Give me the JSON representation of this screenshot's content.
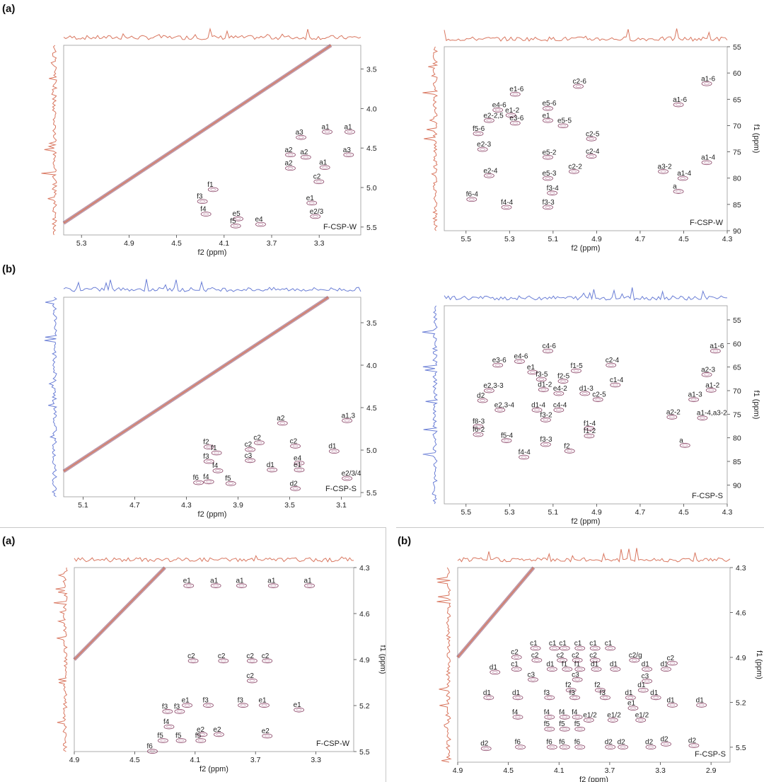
{
  "colors": {
    "contour": "#8a4466",
    "contour_light": "#c79ab2",
    "diag": "#e07a52",
    "proj_red": "#d97760",
    "proj_blue": "#6b7fd6",
    "axis": "#444444",
    "box": "#777777"
  },
  "figure": {
    "labels": {
      "a1": "(a)",
      "b1": "(b)",
      "a2": "(a)",
      "b2": "(b)"
    }
  },
  "chart_data": [
    {
      "id": "p1",
      "type": "contour",
      "sample": "F-CSP-W",
      "proj": "red",
      "xlabel": "f2 (ppm)",
      "ylabel": "",
      "xlim": [
        5.45,
        2.95
      ],
      "ylim": [
        3.2,
        5.6
      ],
      "xticks": [
        5.3,
        4.9,
        4.5,
        4.1,
        3.7,
        3.3
      ],
      "yticks": [
        3.5,
        4.0,
        4.5,
        5.0,
        5.5
      ],
      "labels": [
        {
          "t": "a1",
          "x": 3.28,
          "y": 4.26
        },
        {
          "t": "a3",
          "x": 3.5,
          "y": 4.33
        },
        {
          "t": "a1",
          "x": 3.09,
          "y": 4.26
        },
        {
          "t": "a2",
          "x": 3.59,
          "y": 4.55
        },
        {
          "t": "a2",
          "x": 3.46,
          "y": 4.58
        },
        {
          "t": "a3",
          "x": 3.1,
          "y": 4.55
        },
        {
          "t": "a2",
          "x": 3.59,
          "y": 4.72
        },
        {
          "t": "a1",
          "x": 3.3,
          "y": 4.71
        },
        {
          "t": "c2",
          "x": 3.35,
          "y": 4.89
        },
        {
          "t": "f1",
          "x": 4.24,
          "y": 4.99
        },
        {
          "t": "f3",
          "x": 4.33,
          "y": 5.14
        },
        {
          "t": "e1",
          "x": 3.41,
          "y": 5.16
        },
        {
          "t": "f4",
          "x": 4.3,
          "y": 5.3
        },
        {
          "t": "e5",
          "x": 4.03,
          "y": 5.36
        },
        {
          "t": "e2/3",
          "x": 3.38,
          "y": 5.33
        },
        {
          "t": "f5",
          "x": 4.05,
          "y": 5.45
        },
        {
          "t": "e4",
          "x": 3.84,
          "y": 5.43
        }
      ]
    },
    {
      "id": "p2",
      "type": "contour",
      "sample": "F-CSP-W",
      "proj": "red",
      "xlabel": "f2 (ppm)",
      "ylabel": "f1 (ppm)",
      "xlim": [
        5.6,
        4.3
      ],
      "ylim": [
        55,
        90
      ],
      "xticks": [
        5.5,
        5.3,
        5.1,
        4.9,
        4.7,
        4.5,
        4.3
      ],
      "yticks": [
        55,
        60,
        65,
        70,
        75,
        80,
        85,
        90
      ],
      "labels": [
        {
          "t": "e1-6",
          "x": 5.3,
          "y": 63.5
        },
        {
          "t": "c2-6",
          "x": 5.01,
          "y": 62.0
        },
        {
          "t": "e4-6",
          "x": 5.38,
          "y": 66.5
        },
        {
          "t": "e1-2",
          "x": 5.32,
          "y": 67.5
        },
        {
          "t": "e2-2,5",
          "x": 5.42,
          "y": 68.5
        },
        {
          "t": "e3-6",
          "x": 5.3,
          "y": 69.0
        },
        {
          "t": "e5-6",
          "x": 5.15,
          "y": 66.2
        },
        {
          "t": "e1",
          "x": 5.15,
          "y": 68.5
        },
        {
          "t": "e5-5",
          "x": 5.08,
          "y": 69.5
        },
        {
          "t": "f5-6",
          "x": 5.47,
          "y": 71.0
        },
        {
          "t": "c2-5",
          "x": 4.95,
          "y": 72.0
        },
        {
          "t": "e2-3",
          "x": 5.45,
          "y": 74.0
        },
        {
          "t": "e5-2",
          "x": 5.15,
          "y": 75.5
        },
        {
          "t": "c2-4",
          "x": 4.95,
          "y": 75.3
        },
        {
          "t": "e2-4",
          "x": 5.42,
          "y": 79.0
        },
        {
          "t": "c2-2",
          "x": 5.03,
          "y": 78.2
        },
        {
          "t": "e5-3",
          "x": 5.15,
          "y": 79.5
        },
        {
          "t": "f6-4",
          "x": 5.5,
          "y": 83.5
        },
        {
          "t": "f3-4",
          "x": 5.13,
          "y": 82.3
        },
        {
          "t": "f4-4",
          "x": 5.34,
          "y": 85.0
        },
        {
          "t": "f3-3",
          "x": 5.15,
          "y": 85.0
        },
        {
          "t": "a1-6",
          "x": 4.42,
          "y": 61.5
        },
        {
          "t": "a1-6",
          "x": 4.55,
          "y": 65.5
        },
        {
          "t": "a1-4",
          "x": 4.42,
          "y": 76.5
        },
        {
          "t": "a3-2",
          "x": 4.62,
          "y": 78.2
        },
        {
          "t": "a1-4",
          "x": 4.53,
          "y": 79.5
        },
        {
          "t": "a",
          "x": 4.55,
          "y": 82.0
        }
      ]
    },
    {
      "id": "p3",
      "type": "contour",
      "sample": "F-CSP-S",
      "proj": "blue",
      "xlabel": "f2 (ppm)",
      "ylabel": "f1 (ppm)",
      "xlim": [
        5.25,
        2.95
      ],
      "ylim": [
        3.2,
        5.55
      ],
      "xticks": [
        5.1,
        4.7,
        4.3,
        3.9,
        3.5,
        3.1
      ],
      "yticks": [
        3.5,
        4.0,
        4.5,
        5.0,
        5.5
      ],
      "labels": [
        {
          "t": "a1,3",
          "x": 3.1,
          "y": 4.62
        },
        {
          "t": "a2",
          "x": 3.6,
          "y": 4.65
        },
        {
          "t": "c2",
          "x": 3.78,
          "y": 4.88
        },
        {
          "t": "c2",
          "x": 3.85,
          "y": 4.96
        },
        {
          "t": "c2",
          "x": 3.5,
          "y": 4.92
        },
        {
          "t": "d1",
          "x": 3.2,
          "y": 4.98
        },
        {
          "t": "f2",
          "x": 4.17,
          "y": 4.93
        },
        {
          "t": "f1",
          "x": 4.11,
          "y": 5.0
        },
        {
          "t": "c3",
          "x": 3.85,
          "y": 5.09
        },
        {
          "t": "f3",
          "x": 4.17,
          "y": 5.1
        },
        {
          "t": "e4",
          "x": 3.47,
          "y": 5.12
        },
        {
          "t": "f4",
          "x": 4.1,
          "y": 5.21
        },
        {
          "t": "d1",
          "x": 3.68,
          "y": 5.2
        },
        {
          "t": "e1",
          "x": 3.47,
          "y": 5.2
        },
        {
          "t": "e2/3/4",
          "x": 3.1,
          "y": 5.3
        },
        {
          "t": "f6",
          "x": 4.25,
          "y": 5.35
        },
        {
          "t": "f4",
          "x": 4.17,
          "y": 5.34
        },
        {
          "t": "f5",
          "x": 4.0,
          "y": 5.36
        },
        {
          "t": "d2",
          "x": 3.5,
          "y": 5.42
        }
      ]
    },
    {
      "id": "p4",
      "type": "contour",
      "sample": "F-CSP-S",
      "proj": "blue",
      "xlabel": "f2 (ppm)",
      "ylabel": "f1 (ppm)",
      "xlim": [
        5.6,
        4.3
      ],
      "ylim": [
        52,
        94
      ],
      "xticks": [
        5.5,
        5.3,
        5.1,
        4.9,
        4.7,
        4.5,
        4.3
      ],
      "yticks": [
        55,
        60,
        65,
        70,
        75,
        80,
        85,
        90
      ],
      "labels": [
        {
          "t": "c4-6",
          "x": 5.15,
          "y": 61.0
        },
        {
          "t": "e3-6",
          "x": 5.38,
          "y": 64.0
        },
        {
          "t": "e4-6",
          "x": 5.28,
          "y": 63.2
        },
        {
          "t": "e1",
          "x": 5.22,
          "y": 65.5
        },
        {
          "t": "f1-5",
          "x": 5.02,
          "y": 65.2
        },
        {
          "t": "c2-4",
          "x": 4.86,
          "y": 64.0
        },
        {
          "t": "f3-5",
          "x": 5.18,
          "y": 67.0
        },
        {
          "t": "f2-5",
          "x": 5.08,
          "y": 67.4
        },
        {
          "t": "d1-2",
          "x": 5.17,
          "y": 69.2
        },
        {
          "t": "c1-4",
          "x": 4.84,
          "y": 68.2
        },
        {
          "t": "e2,3-3",
          "x": 5.42,
          "y": 69.4
        },
        {
          "t": "e4-2",
          "x": 5.1,
          "y": 70.0
        },
        {
          "t": "d1-3",
          "x": 4.98,
          "y": 70.0
        },
        {
          "t": "d2",
          "x": 5.45,
          "y": 71.5
        },
        {
          "t": "c2-5",
          "x": 4.92,
          "y": 71.3
        },
        {
          "t": "e2,3-4",
          "x": 5.37,
          "y": 73.5
        },
        {
          "t": "d1-4",
          "x": 5.2,
          "y": 73.5
        },
        {
          "t": "c4-4",
          "x": 5.1,
          "y": 73.5
        },
        {
          "t": "f3-2",
          "x": 5.16,
          "y": 75.6
        },
        {
          "t": "f8-3",
          "x": 5.47,
          "y": 77.0
        },
        {
          "t": "f1-4",
          "x": 4.96,
          "y": 77.4
        },
        {
          "t": "f6-2",
          "x": 5.47,
          "y": 78.7
        },
        {
          "t": "f1-2",
          "x": 4.96,
          "y": 79.0
        },
        {
          "t": "f5-4",
          "x": 5.34,
          "y": 80.0
        },
        {
          "t": "f3-3",
          "x": 5.16,
          "y": 80.8
        },
        {
          "t": "f2",
          "x": 5.05,
          "y": 82.2
        },
        {
          "t": "f4-4",
          "x": 5.26,
          "y": 83.5
        },
        {
          "t": "a1-6",
          "x": 4.38,
          "y": 61.0
        },
        {
          "t": "a2-3",
          "x": 4.42,
          "y": 66.0
        },
        {
          "t": "a1-2",
          "x": 4.4,
          "y": 69.3
        },
        {
          "t": "a1-3",
          "x": 4.48,
          "y": 71.3
        },
        {
          "t": "a2-2",
          "x": 4.58,
          "y": 75.0
        },
        {
          "t": "a1-4,a3-2",
          "x": 4.44,
          "y": 75.2
        },
        {
          "t": "a",
          "x": 4.52,
          "y": 81.0
        }
      ]
    },
    {
      "id": "p5",
      "type": "contour",
      "sample": "F-CSP-W",
      "proj": "red",
      "xlabel": "f2 (ppm)",
      "ylabel": "f1 (ppm)",
      "xlim": [
        4.9,
        3.05
      ],
      "ylim": [
        4.3,
        5.5
      ],
      "xticks": [
        4.9,
        4.5,
        4.1,
        3.7,
        3.3
      ],
      "yticks": [
        4.3,
        4.6,
        4.9,
        5.2,
        5.5
      ],
      "labels": [
        {
          "t": "e1",
          "x": 4.18,
          "y": 4.4
        },
        {
          "t": "a1",
          "x": 4.0,
          "y": 4.4
        },
        {
          "t": "a1",
          "x": 3.83,
          "y": 4.4
        },
        {
          "t": "a1",
          "x": 3.62,
          "y": 4.4
        },
        {
          "t": "a1",
          "x": 3.38,
          "y": 4.4
        },
        {
          "t": "c2",
          "x": 4.15,
          "y": 4.89
        },
        {
          "t": "c2",
          "x": 3.95,
          "y": 4.89
        },
        {
          "t": "c2",
          "x": 3.76,
          "y": 4.89
        },
        {
          "t": "c2",
          "x": 3.66,
          "y": 4.89
        },
        {
          "t": "c2",
          "x": 3.76,
          "y": 5.02
        },
        {
          "t": "e1",
          "x": 4.19,
          "y": 5.18
        },
        {
          "t": "f3",
          "x": 4.05,
          "y": 5.18
        },
        {
          "t": "f3",
          "x": 3.82,
          "y": 5.18
        },
        {
          "t": "e1",
          "x": 3.68,
          "y": 5.18
        },
        {
          "t": "e1",
          "x": 3.45,
          "y": 5.21
        },
        {
          "t": "f3",
          "x": 4.32,
          "y": 5.22
        },
        {
          "t": "f3",
          "x": 4.24,
          "y": 5.22
        },
        {
          "t": "f4",
          "x": 4.31,
          "y": 5.32
        },
        {
          "t": "e2",
          "x": 4.09,
          "y": 5.37
        },
        {
          "t": "e2",
          "x": 3.98,
          "y": 5.37
        },
        {
          "t": "e2",
          "x": 3.66,
          "y": 5.38
        },
        {
          "t": "f5",
          "x": 4.35,
          "y": 5.41
        },
        {
          "t": "f5",
          "x": 4.23,
          "y": 5.41
        },
        {
          "t": "f5",
          "x": 4.1,
          "y": 5.41
        },
        {
          "t": "f6",
          "x": 4.42,
          "y": 5.48
        }
      ]
    },
    {
      "id": "p6",
      "type": "contour",
      "sample": "F-CSP-S",
      "proj": "red",
      "xlabel": "f2 (ppm)",
      "ylabel": "f1 (ppm)",
      "xlim": [
        4.9,
        2.75
      ],
      "ylim": [
        4.3,
        5.6
      ],
      "xticks": [
        4.9,
        4.5,
        4.1,
        3.7,
        3.3,
        2.9
      ],
      "yticks": [
        4.3,
        4.6,
        4.9,
        5.2,
        5.5
      ],
      "labels": [
        {
          "t": "c1",
          "x": 4.33,
          "y": 4.82
        },
        {
          "t": "c1",
          "x": 4.18,
          "y": 4.82
        },
        {
          "t": "c1",
          "x": 4.1,
          "y": 4.82
        },
        {
          "t": "c1",
          "x": 3.98,
          "y": 4.82
        },
        {
          "t": "c1",
          "x": 3.86,
          "y": 4.82
        },
        {
          "t": "c1",
          "x": 3.74,
          "y": 4.82
        },
        {
          "t": "c2",
          "x": 4.48,
          "y": 4.88
        },
        {
          "t": "c2",
          "x": 4.32,
          "y": 4.9
        },
        {
          "t": "c2",
          "x": 4.12,
          "y": 4.9
        },
        {
          "t": "c2",
          "x": 4.0,
          "y": 4.9
        },
        {
          "t": "c2",
          "x": 3.86,
          "y": 4.9
        },
        {
          "t": "c2/g",
          "x": 3.55,
          "y": 4.9
        },
        {
          "t": "c2",
          "x": 3.25,
          "y": 4.92
        },
        {
          "t": "d1",
          "x": 4.65,
          "y": 4.98
        },
        {
          "t": "c1",
          "x": 4.48,
          "y": 4.96
        },
        {
          "t": "d1",
          "x": 4.2,
          "y": 4.96
        },
        {
          "t": "f1",
          "x": 4.08,
          "y": 4.96
        },
        {
          "t": "f1",
          "x": 3.98,
          "y": 4.96
        },
        {
          "t": "d1",
          "x": 3.85,
          "y": 4.96
        },
        {
          "t": "d1",
          "x": 3.7,
          "y": 4.96
        },
        {
          "t": "d1",
          "x": 3.45,
          "y": 4.96
        },
        {
          "t": "d1",
          "x": 3.3,
          "y": 4.96
        },
        {
          "t": "c3",
          "x": 4.35,
          "y": 5.03
        },
        {
          "t": "c3",
          "x": 4.0,
          "y": 5.03
        },
        {
          "t": "c3",
          "x": 3.45,
          "y": 5.04
        },
        {
          "t": "f2",
          "x": 4.05,
          "y": 5.1
        },
        {
          "t": "f2",
          "x": 3.82,
          "y": 5.1
        },
        {
          "t": "d1",
          "x": 3.48,
          "y": 5.1
        },
        {
          "t": "d1",
          "x": 4.7,
          "y": 5.15
        },
        {
          "t": "d1",
          "x": 4.47,
          "y": 5.15
        },
        {
          "t": "f3",
          "x": 4.22,
          "y": 5.15
        },
        {
          "t": "f3",
          "x": 4.02,
          "y": 5.15
        },
        {
          "t": "f3",
          "x": 3.78,
          "y": 5.15
        },
        {
          "t": "d1",
          "x": 3.58,
          "y": 5.15
        },
        {
          "t": "d1",
          "x": 3.38,
          "y": 5.15
        },
        {
          "t": "e1",
          "x": 3.56,
          "y": 5.22
        },
        {
          "t": "d1",
          "x": 3.25,
          "y": 5.2
        },
        {
          "t": "d1",
          "x": 3.02,
          "y": 5.2
        },
        {
          "t": "f4",
          "x": 4.47,
          "y": 5.28
        },
        {
          "t": "f4",
          "x": 4.22,
          "y": 5.28
        },
        {
          "t": "f4",
          "x": 4.1,
          "y": 5.28
        },
        {
          "t": "f4",
          "x": 4.0,
          "y": 5.28
        },
        {
          "t": "e1/2",
          "x": 3.91,
          "y": 5.3
        },
        {
          "t": "e1/2",
          "x": 3.72,
          "y": 5.3
        },
        {
          "t": "e1/2",
          "x": 3.5,
          "y": 5.3
        },
        {
          "t": "f5",
          "x": 4.22,
          "y": 5.36
        },
        {
          "t": "f5",
          "x": 4.1,
          "y": 5.36
        },
        {
          "t": "f5",
          "x": 3.98,
          "y": 5.36
        },
        {
          "t": "d2",
          "x": 4.72,
          "y": 5.49
        },
        {
          "t": "f6",
          "x": 4.45,
          "y": 5.48
        },
        {
          "t": "f6",
          "x": 4.2,
          "y": 5.48
        },
        {
          "t": "f6",
          "x": 4.1,
          "y": 5.48
        },
        {
          "t": "f6",
          "x": 3.98,
          "y": 5.48
        },
        {
          "t": "d2",
          "x": 3.74,
          "y": 5.48
        },
        {
          "t": "d2",
          "x": 3.64,
          "y": 5.48
        },
        {
          "t": "d2",
          "x": 3.42,
          "y": 5.48
        },
        {
          "t": "d2",
          "x": 3.3,
          "y": 5.46
        },
        {
          "t": "d2",
          "x": 3.08,
          "y": 5.47
        }
      ]
    }
  ]
}
